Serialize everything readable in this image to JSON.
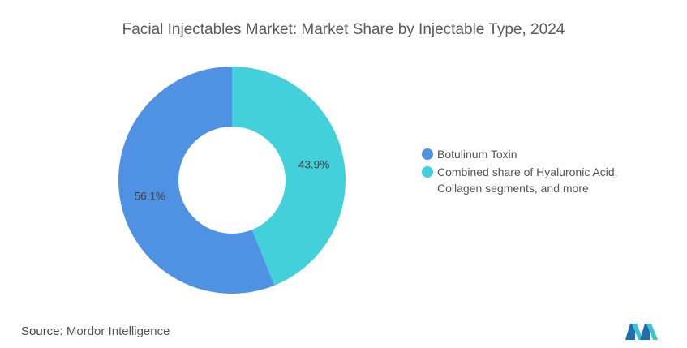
{
  "title": "Facial Injectables Market: Market Share by Injectable Type, 2024",
  "source": {
    "label": "Source:",
    "value": "Mordor Intelligence"
  },
  "chart_data": {
    "type": "pie",
    "title": "Facial Injectables Market: Market Share by Injectable Type, 2024",
    "donut": true,
    "legend_position": "right",
    "series": [
      {
        "name": "Botulinum Toxin",
        "value": 56.1,
        "label": "56.1%",
        "color": "#4f91e3"
      },
      {
        "name": "Combined share of Hyaluronic Acid, Collagen segments, and more",
        "value": 43.9,
        "label": "43.9%",
        "color": "#42d0db"
      }
    ],
    "legend": [
      {
        "lines": [
          "Botulinum Toxin"
        ],
        "color": "#4f91e3"
      },
      {
        "lines": [
          "Combined share of Hyaluronic Acid,",
          "Collagen segments, and more"
        ],
        "color": "#42d0db"
      }
    ]
  },
  "logo": {
    "icon": "mordor-intelligence-logo",
    "colors": [
      "#1f6fae",
      "#3fc3cf"
    ]
  }
}
